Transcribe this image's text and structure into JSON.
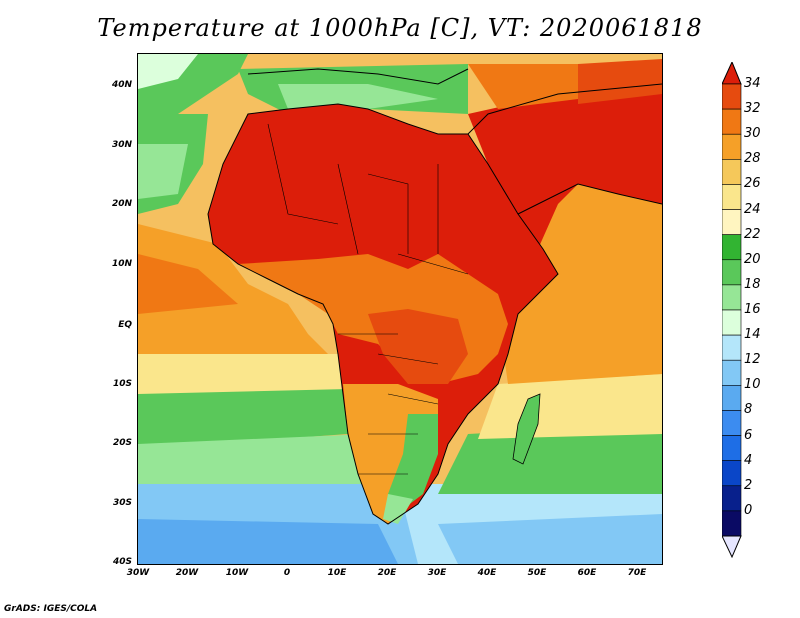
{
  "title": "Temperature at 1000hPa [C], VT: 2020061818",
  "credit": "GrADS: IGES/COLA",
  "lat_ticks": [
    "40N",
    "30N",
    "20N",
    "10N",
    "EQ",
    "10S",
    "20S",
    "30S",
    "40S"
  ],
  "lon_ticks": [
    "30W",
    "20W",
    "10W",
    "0",
    "10E",
    "20E",
    "30E",
    "40E",
    "50E",
    "60E",
    "70E"
  ],
  "legend": {
    "labels": [
      "34",
      "32",
      "30",
      "28",
      "26",
      "24",
      "22",
      "20",
      "18",
      "16",
      "14",
      "12",
      "10",
      "8",
      "6",
      "4",
      "2",
      "0"
    ],
    "colors": [
      "#dc1e0a",
      "#e64b0f",
      "#f07814",
      "#f5a028",
      "#f5c85a",
      "#fae68c",
      "#fff5c0",
      "#32b432",
      "#5ac85a",
      "#96e696",
      "#dcffdc",
      "#b4e6fa",
      "#82c8f5",
      "#5aaaf0",
      "#3c8cf0",
      "#1e6ee6",
      "#0a46c8",
      "#08208c",
      "#0a0a64",
      "#e6e6ff"
    ]
  }
}
